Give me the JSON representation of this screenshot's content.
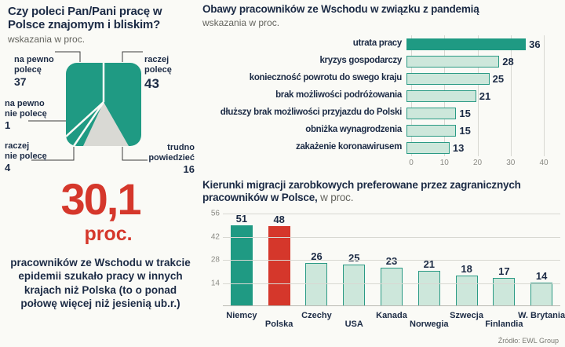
{
  "colors": {
    "teal": "#1f9a83",
    "teal_light": "#cde7db",
    "red": "#d5372b",
    "navy": "#1c2b45",
    "wedge_gray": "#d9d9d4"
  },
  "stat": {
    "value": "30,1",
    "unit": "proc.",
    "description": "pracowników ze Wschodu w trakcie epidemii szukało pracy w innych krajach niż Polska (to o ponad połowę więcej niż jesienią ub.r.)"
  },
  "source": "Źródło: EWL Group",
  "chart_data": [
    {
      "type": "pie",
      "title": "Czy poleci Pan/Pani pracę w Polsce znajomym i bliskim?",
      "subtitle": "wskazania w proc.",
      "slices": [
        {
          "label": "na pewno\npolecę",
          "value": 37
        },
        {
          "label": "raczej\npolecę",
          "value": 43
        },
        {
          "label": "na pewno\nnie polecę",
          "value": 1
        },
        {
          "label": "raczej\nnie polecę",
          "value": 4
        },
        {
          "label": "trudno\npowiedzieć",
          "value": 16
        }
      ]
    },
    {
      "type": "bar",
      "orientation": "horizontal",
      "title": "Obawy pracowników ze Wschodu w związku z pandemią",
      "subtitle": "wskazania w proc.",
      "categories": [
        "utrata pracy",
        "kryzys gospodarczy",
        "konieczność powrotu do swego kraju",
        "brak możliwości podróżowania",
        "dłuższy brak możliwości przyjazdu do Polski",
        "obniżka wynagrodzenia",
        "zakażenie koronawirusem"
      ],
      "values": [
        36,
        28,
        25,
        21,
        15,
        15,
        13
      ],
      "xlim": [
        0,
        40
      ],
      "ticks": [
        0,
        10,
        20,
        30,
        40
      ],
      "highlight_first": true
    },
    {
      "type": "bar",
      "orientation": "vertical",
      "title": "Kierunki migracji zarobkowych preferowane przez zagranicznych pracowników w Polsce,",
      "title_suffix": "w proc.",
      "categories": [
        "Niemcy",
        "Polska",
        "Czechy",
        "USA",
        "Kanada",
        "Norwegia",
        "Szwecja",
        "Finlandia",
        "W. Brytania"
      ],
      "values": [
        51,
        48,
        26,
        25,
        23,
        21,
        18,
        17,
        14
      ],
      "styles": [
        "solid",
        "red",
        "light",
        "light",
        "light",
        "light",
        "light",
        "light",
        "light"
      ],
      "ylim": [
        0,
        56
      ],
      "yticks": [
        14,
        28,
        42,
        56
      ]
    }
  ]
}
